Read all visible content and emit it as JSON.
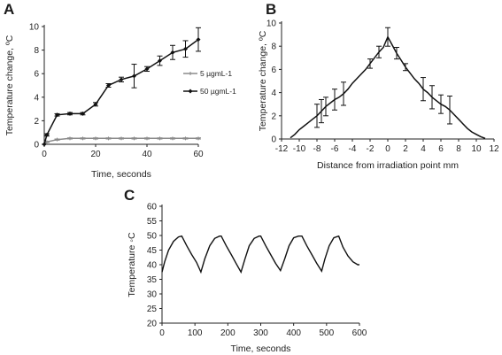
{
  "chart_data": [
    {
      "panel": "A",
      "type": "line",
      "xlabel": "Time, seconds",
      "ylabel": "Temperature change, ºC",
      "xlim": [
        0,
        60
      ],
      "ylim": [
        0,
        10
      ],
      "xticks": [
        0,
        20,
        40,
        60
      ],
      "yticks": [
        0,
        2,
        4,
        6,
        8,
        10
      ],
      "legend_position": "right",
      "series": [
        {
          "name": "5 µgmL-1",
          "color": "#8a8a8a",
          "marker": "cross",
          "x": [
            0,
            1,
            5,
            10,
            15,
            20,
            25,
            30,
            35,
            40,
            45,
            50,
            55,
            60
          ],
          "y": [
            0,
            0.2,
            0.4,
            0.5,
            0.5,
            0.5,
            0.5,
            0.5,
            0.5,
            0.5,
            0.5,
            0.5,
            0.5,
            0.5
          ],
          "err": [
            0,
            0.05,
            0.05,
            0.05,
            0.05,
            0.05,
            0.05,
            0.05,
            0.05,
            0.05,
            0.05,
            0.05,
            0.05,
            0.05
          ]
        },
        {
          "name": "50 µgmL-1",
          "color": "#111111",
          "marker": "diamond",
          "x": [
            0,
            1,
            5,
            10,
            15,
            20,
            25,
            30,
            35,
            40,
            45,
            50,
            55,
            60
          ],
          "y": [
            0,
            0.8,
            2.5,
            2.6,
            2.6,
            3.4,
            5.0,
            5.5,
            5.8,
            6.4,
            7.1,
            7.8,
            8.1,
            8.9
          ],
          "err": [
            0,
            0.1,
            0.1,
            0.1,
            0.1,
            0.15,
            0.15,
            0.2,
            1.0,
            0.2,
            0.4,
            0.6,
            0.7,
            1.0
          ]
        }
      ]
    },
    {
      "panel": "B",
      "type": "line",
      "xlabel": "Distance from irradiation point mm",
      "ylabel": "Temperature change, ºC",
      "xlim": [
        -12,
        12
      ],
      "ylim": [
        0,
        10
      ],
      "xticks": [
        -12,
        -10,
        -8,
        -6,
        -4,
        -2,
        0,
        2,
        4,
        6,
        8,
        10,
        12
      ],
      "yticks": [
        0,
        2,
        4,
        6,
        8,
        10
      ],
      "series": [
        {
          "name": "",
          "color": "#111111",
          "x": [
            -11,
            -10.5,
            -10,
            -9.5,
            -9,
            -8.5,
            -8,
            -7.5,
            -7,
            -6.5,
            -6,
            -5.5,
            -5,
            -4.5,
            -4,
            -3.5,
            -3,
            -2.5,
            -2,
            -1.5,
            -1,
            -0.5,
            0,
            0.5,
            1,
            1.5,
            2,
            2.5,
            3,
            3.5,
            4,
            4.5,
            5,
            5.5,
            6,
            6.5,
            7,
            7.5,
            8,
            8.5,
            9,
            9.5,
            10,
            10.5,
            11
          ],
          "y": [
            0.1,
            0.4,
            0.8,
            1.1,
            1.4,
            1.7,
            2.0,
            2.4,
            2.8,
            3.1,
            3.4,
            3.6,
            3.9,
            4.3,
            4.8,
            5.2,
            5.6,
            6.0,
            6.5,
            7.0,
            7.5,
            7.9,
            8.8,
            8.1,
            7.4,
            6.8,
            6.2,
            5.7,
            5.2,
            4.8,
            4.3,
            4.0,
            3.6,
            3.3,
            3.0,
            2.8,
            2.5,
            2.1,
            1.7,
            1.3,
            0.9,
            0.6,
            0.4,
            0.2,
            0.05
          ],
          "err": [
            0,
            0,
            0,
            0,
            0,
            0,
            1.0,
            1.0,
            0.8,
            0,
            0.9,
            0,
            1.0,
            0,
            0,
            0,
            0,
            0,
            0.4,
            0,
            0.5,
            0,
            0.8,
            0,
            0.5,
            0,
            0.3,
            0,
            0,
            0,
            1.0,
            0,
            1.0,
            0,
            0.8,
            0,
            1.2,
            0,
            0,
            0,
            0,
            0,
            0,
            0,
            0
          ]
        }
      ]
    },
    {
      "panel": "C",
      "type": "line",
      "xlabel": "Time, seconds",
      "ylabel": "Temperature ◦C",
      "xlim": [
        0,
        600
      ],
      "ylim": [
        20,
        60
      ],
      "xticks": [
        0,
        100,
        200,
        300,
        400,
        500,
        600
      ],
      "yticks": [
        20,
        25,
        30,
        35,
        40,
        45,
        50,
        55,
        60
      ],
      "series": [
        {
          "name": "",
          "color": "#111111",
          "x": [
            0,
            8,
            20,
            35,
            50,
            60,
            75,
            90,
            105,
            118,
            130,
            145,
            160,
            175,
            180,
            195,
            210,
            225,
            240,
            252,
            265,
            280,
            295,
            300,
            315,
            330,
            345,
            360,
            373,
            386,
            400,
            415,
            425,
            440,
            455,
            470,
            485,
            495,
            508,
            522,
            537,
            550,
            565,
            580,
            595,
            600
          ],
          "y": [
            37.5,
            41,
            45,
            48,
            49.5,
            49.8,
            46.5,
            43.5,
            40.8,
            37.5,
            42,
            46.5,
            49,
            49.8,
            49.8,
            46.5,
            43.5,
            40.5,
            37.5,
            42,
            46.5,
            49,
            49.8,
            49.8,
            46.5,
            43.5,
            40.5,
            38,
            42,
            46.5,
            49.2,
            49.8,
            49.8,
            46.5,
            43.5,
            40.5,
            37.8,
            42,
            46.5,
            49.2,
            49.8,
            46,
            43,
            41,
            40,
            40
          ]
        }
      ]
    }
  ]
}
